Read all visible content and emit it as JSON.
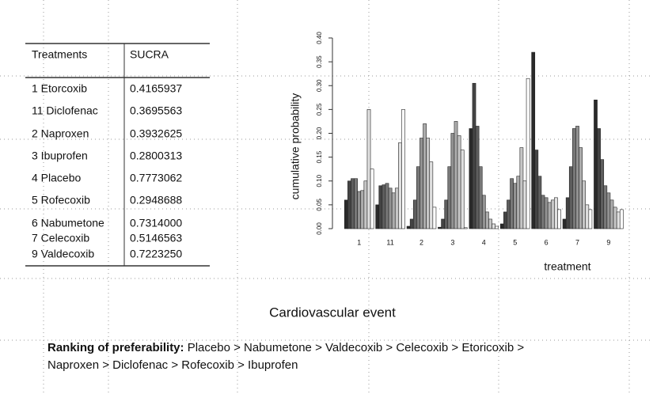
{
  "table": {
    "header": [
      "Treatments",
      "SUCRA"
    ],
    "rows": [
      [
        "1 Etorcoxib",
        "0.4165937"
      ],
      [
        "11 Diclofenac",
        "0.3695563"
      ],
      [
        "2 Naproxen",
        "0.3932625"
      ],
      [
        "3 Ibuprofen",
        "0.2800313"
      ],
      [
        "4 Placebo",
        "0.7773062"
      ],
      [
        "5 Rofecoxib",
        "0.2948688"
      ],
      [
        "6 Nabumetone",
        "0.7314000"
      ],
      [
        "7 Celecoxib",
        "0.5146563"
      ],
      [
        "9 Valdecoxib",
        "0.7223250"
      ]
    ]
  },
  "chart_data": {
    "type": "bar",
    "x_label": "treatment",
    "y_label": "cumulative probability",
    "categories": [
      "1",
      "11",
      "2",
      "3",
      "4",
      "5",
      "6",
      "7",
      "9"
    ],
    "series": [
      {
        "color": "#2a2a2a",
        "values": [
          0.06,
          0.05,
          0.005,
          0.003,
          0.21,
          0.01,
          0.37,
          0.02,
          0.27
        ]
      },
      {
        "color": "#444444",
        "values": [
          0.1,
          0.09,
          0.02,
          0.02,
          0.305,
          0.035,
          0.165,
          0.065,
          0.21
        ]
      },
      {
        "color": "#5e5e5e",
        "values": [
          0.105,
          0.092,
          0.06,
          0.06,
          0.215,
          0.06,
          0.11,
          0.13,
          0.145
        ]
      },
      {
        "color": "#787878",
        "values": [
          0.105,
          0.095,
          0.13,
          0.13,
          0.13,
          0.105,
          0.07,
          0.21,
          0.09
        ]
      },
      {
        "color": "#929292",
        "values": [
          0.078,
          0.085,
          0.19,
          0.2,
          0.07,
          0.095,
          0.065,
          0.215,
          0.075
        ]
      },
      {
        "color": "#acacac",
        "values": [
          0.08,
          0.075,
          0.22,
          0.225,
          0.035,
          0.11,
          0.055,
          0.17,
          0.06
        ]
      },
      {
        "color": "#c6c6c6",
        "values": [
          0.1,
          0.085,
          0.19,
          0.195,
          0.02,
          0.17,
          0.06,
          0.1,
          0.045
        ]
      },
      {
        "color": "#e0e0e0",
        "values": [
          0.25,
          0.18,
          0.14,
          0.165,
          0.01,
          0.1,
          0.065,
          0.05,
          0.035
        ]
      },
      {
        "color": "#ffffff",
        "values": [
          0.125,
          0.25,
          0.045,
          0.002,
          0.005,
          0.315,
          0.04,
          0.04,
          0.04
        ]
      }
    ],
    "ylim": [
      0,
      0.4
    ],
    "yticks": [
      {
        "value": 0,
        "label": "0.00"
      },
      {
        "value": 0.05,
        "label": "0.05"
      },
      {
        "value": 0.1,
        "label": "0.10"
      },
      {
        "value": 0.15,
        "label": "0.15"
      },
      {
        "value": 0.2,
        "label": "0.20"
      },
      {
        "value": 0.25,
        "label": "0.25"
      },
      {
        "value": 0.3,
        "label": "0.30"
      },
      {
        "value": 0.35,
        "label": "0.35"
      },
      {
        "value": 0.4,
        "label": "0.40"
      }
    ]
  },
  "caption": "Cardiovascular event",
  "ranking": {
    "label": "Ranking of preferability:",
    "line1": "Placebo >  Nabumetone  > Valdecoxib > Celecoxib >  Etoricoxib >",
    "line2": "Naproxen > Diclofenac > Rofecoxib > Ibuprofen"
  }
}
